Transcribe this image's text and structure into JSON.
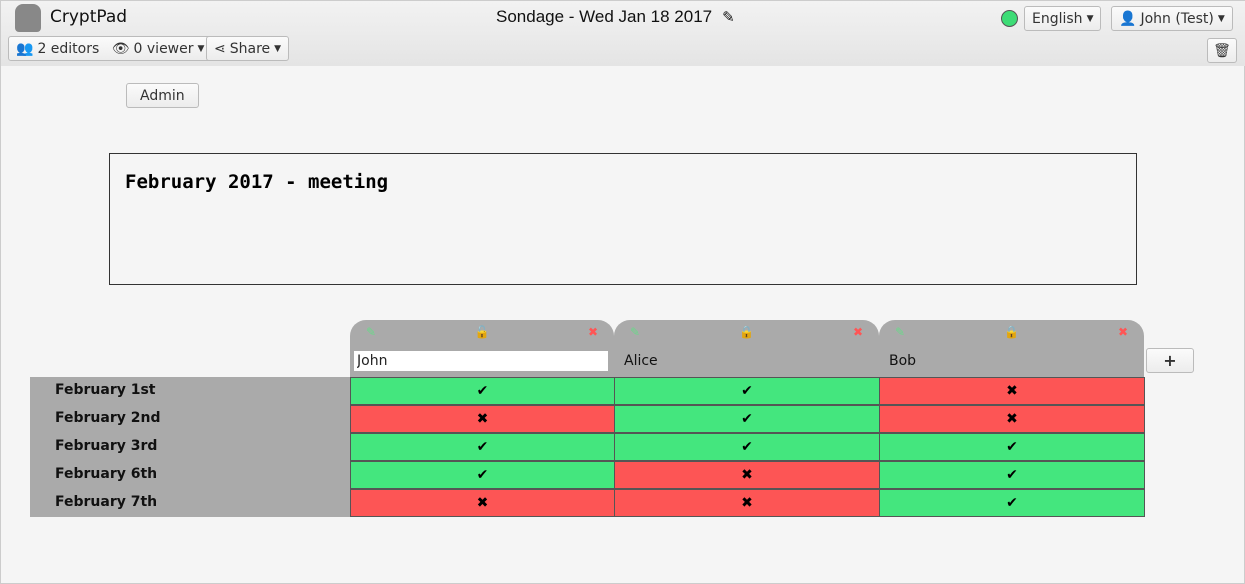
{
  "app": {
    "name": "CryptPad",
    "title": "Sondage - Wed Jan 18 2017"
  },
  "toolbar": {
    "editors": "2 editors",
    "viewers": "0 viewer",
    "share": "Share",
    "language": "English",
    "user": "John (Test)",
    "status_color": "#3ddc76"
  },
  "admin_label": "Admin",
  "pad_text": "February 2017 - meeting",
  "columns": [
    {
      "name": "John",
      "locked": false,
      "editing": true
    },
    {
      "name": "Alice",
      "locked": true,
      "editing": false
    },
    {
      "name": "Bob",
      "locked": true,
      "editing": false
    }
  ],
  "rows": [
    {
      "label": "February 1st",
      "values": [
        true,
        true,
        false
      ]
    },
    {
      "label": "February 2nd",
      "values": [
        false,
        true,
        false
      ]
    },
    {
      "label": "February 3rd",
      "values": [
        true,
        true,
        true
      ]
    },
    {
      "label": "February 6th",
      "values": [
        true,
        false,
        true
      ]
    },
    {
      "label": "February 7th",
      "values": [
        false,
        false,
        true
      ]
    }
  ],
  "symbols": {
    "yes": "✔",
    "no": "✖"
  },
  "colors": {
    "yes": "#44e67e",
    "no": "#fd5555"
  }
}
